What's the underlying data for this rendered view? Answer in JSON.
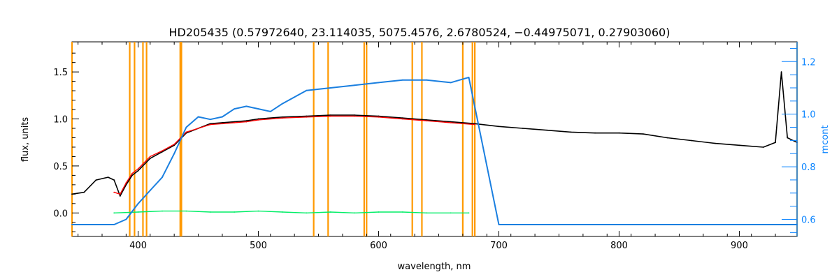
{
  "chart_data": {
    "type": "line",
    "title": "HD205435    (0.57972640, 23.114035, 5075.4576, 2.6780524, −0.44975071, 0.27903060)",
    "xlabel": "wavelength, nm",
    "ylabel": "flux, units",
    "y2label": "mcont",
    "xlim": [
      345,
      948
    ],
    "ylim": [
      -0.25,
      1.82
    ],
    "y2lim": [
      0.535,
      1.275
    ],
    "x_ticks": [
      400,
      500,
      600,
      700,
      800,
      900
    ],
    "x_tick_labels": [
      "400",
      "500",
      "600",
      "700",
      "800",
      "900"
    ],
    "y_ticks": [
      0.0,
      0.5,
      1.0,
      1.5
    ],
    "y_tick_labels": [
      "0.0",
      "0.5",
      "1.0",
      "1.5"
    ],
    "y2_ticks": [
      0.6,
      0.8,
      1.0,
      1.2
    ],
    "y2_tick_labels": [
      "0.6",
      "0.8",
      "1.0",
      "1.2"
    ],
    "grid": false,
    "colors": {
      "observed": "#000000",
      "model": "#ff0000",
      "residual": "#00ee66",
      "continuum": "#1a7fe0",
      "masks": "#ff9900",
      "right_axis": "#0a84ff"
    },
    "series": [
      {
        "key": "observed",
        "x": [
          345,
          355,
          365,
          375,
          380,
          385,
          390,
          395,
          400,
          410,
          420,
          430,
          440,
          450,
          460,
          470,
          480,
          490,
          500,
          520,
          540,
          560,
          580,
          600,
          620,
          640,
          660,
          680,
          700,
          720,
          740,
          760,
          780,
          800,
          820,
          840,
          860,
          880,
          900,
          920,
          930,
          935,
          940,
          948
        ],
        "y": [
          0.2,
          0.22,
          0.35,
          0.38,
          0.35,
          0.18,
          0.3,
          0.4,
          0.45,
          0.58,
          0.65,
          0.72,
          0.85,
          0.9,
          0.95,
          0.96,
          0.97,
          0.98,
          1.0,
          1.02,
          1.03,
          1.04,
          1.04,
          1.03,
          1.01,
          0.99,
          0.97,
          0.95,
          0.92,
          0.9,
          0.88,
          0.86,
          0.85,
          0.85,
          0.84,
          0.8,
          0.77,
          0.74,
          0.72,
          0.7,
          0.75,
          1.5,
          0.8,
          0.75
        ]
      },
      {
        "key": "model",
        "x": [
          380,
          385,
          390,
          395,
          400,
          410,
          420,
          430,
          440,
          450,
          460,
          470,
          480,
          490,
          500,
          520,
          540,
          560,
          580,
          600,
          620,
          640,
          660,
          680
        ],
        "y": [
          0.22,
          0.2,
          0.32,
          0.42,
          0.47,
          0.6,
          0.66,
          0.73,
          0.86,
          0.9,
          0.94,
          0.95,
          0.96,
          0.97,
          0.99,
          1.01,
          1.02,
          1.03,
          1.03,
          1.02,
          1.0,
          0.98,
          0.96,
          0.94
        ]
      },
      {
        "key": "residual",
        "x": [
          380,
          400,
          420,
          440,
          460,
          480,
          500,
          520,
          540,
          560,
          580,
          600,
          620,
          640,
          660,
          675
        ],
        "y": [
          0.0,
          0.01,
          0.02,
          0.02,
          0.01,
          0.01,
          0.02,
          0.01,
          0.0,
          0.01,
          0.0,
          0.01,
          0.01,
          0.0,
          0.0,
          0.0
        ]
      },
      {
        "key": "continuum",
        "axis": "right",
        "x": [
          345,
          380,
          390,
          400,
          410,
          420,
          430,
          440,
          450,
          460,
          470,
          480,
          490,
          500,
          510,
          520,
          540,
          560,
          580,
          600,
          620,
          640,
          660,
          675,
          700,
          800,
          900,
          948
        ],
        "y": [
          0.58,
          0.58,
          0.6,
          0.66,
          0.71,
          0.76,
          0.85,
          0.95,
          0.99,
          0.98,
          0.99,
          1.02,
          1.03,
          1.02,
          1.01,
          1.04,
          1.09,
          1.1,
          1.11,
          1.12,
          1.13,
          1.13,
          1.12,
          1.14,
          0.58,
          0.58,
          0.58,
          0.58
        ]
      }
    ],
    "mask_lines": [
      345,
      393,
      397,
      404,
      407,
      435,
      436,
      546,
      558,
      588,
      590,
      628,
      636,
      670,
      678,
      680,
      948
    ]
  }
}
